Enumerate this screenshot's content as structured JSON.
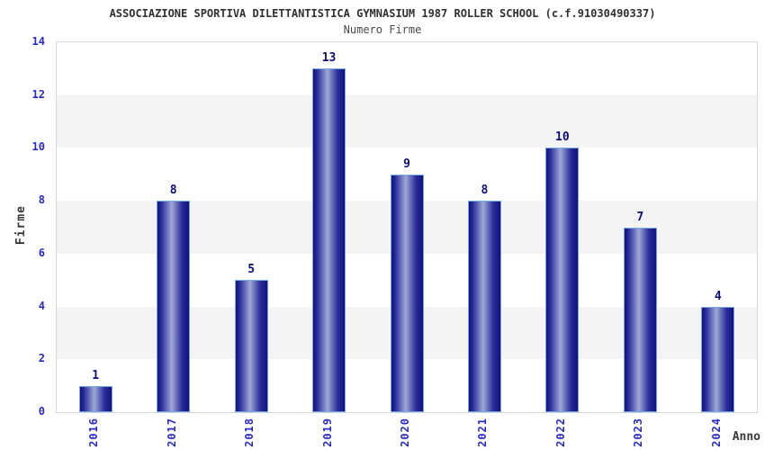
{
  "chart_data": {
    "type": "bar",
    "title": "ASSOCIAZIONE SPORTIVA DILETTANTISTICA GYMNASIUM 1987 ROLLER SCHOOL (c.f.91030490337)",
    "subtitle": "Numero Firme",
    "categories": [
      "2016",
      "2017",
      "2018",
      "2019",
      "2020",
      "2021",
      "2022",
      "2023",
      "2024"
    ],
    "values": [
      1,
      8,
      5,
      13,
      9,
      8,
      10,
      7,
      4
    ],
    "xlabel": "Anno",
    "ylabel": "Firme",
    "ylim": [
      0,
      14
    ],
    "yticks": [
      0,
      2,
      4,
      6,
      8,
      10,
      12,
      14
    ],
    "grid": "alternating horizontal bands every 2 units (white / light gray)",
    "legend": "none",
    "colors": {
      "bar_dark": "#12127c",
      "bar_mid": "#2a2a9a",
      "bar_highlight": "#9fa9d6",
      "bar_border": "#6fa8ec",
      "tick_label": "#2a2acc",
      "value_label": "#0d0d7a",
      "band_alt": "#f4f4f4",
      "band_main": "#ffffff",
      "plot_border": "#d6d6d6",
      "title": "#303030",
      "subtitle": "#4a4a4a",
      "axis_title": "#3a3a3a",
      "background": "#ffffff"
    }
  }
}
